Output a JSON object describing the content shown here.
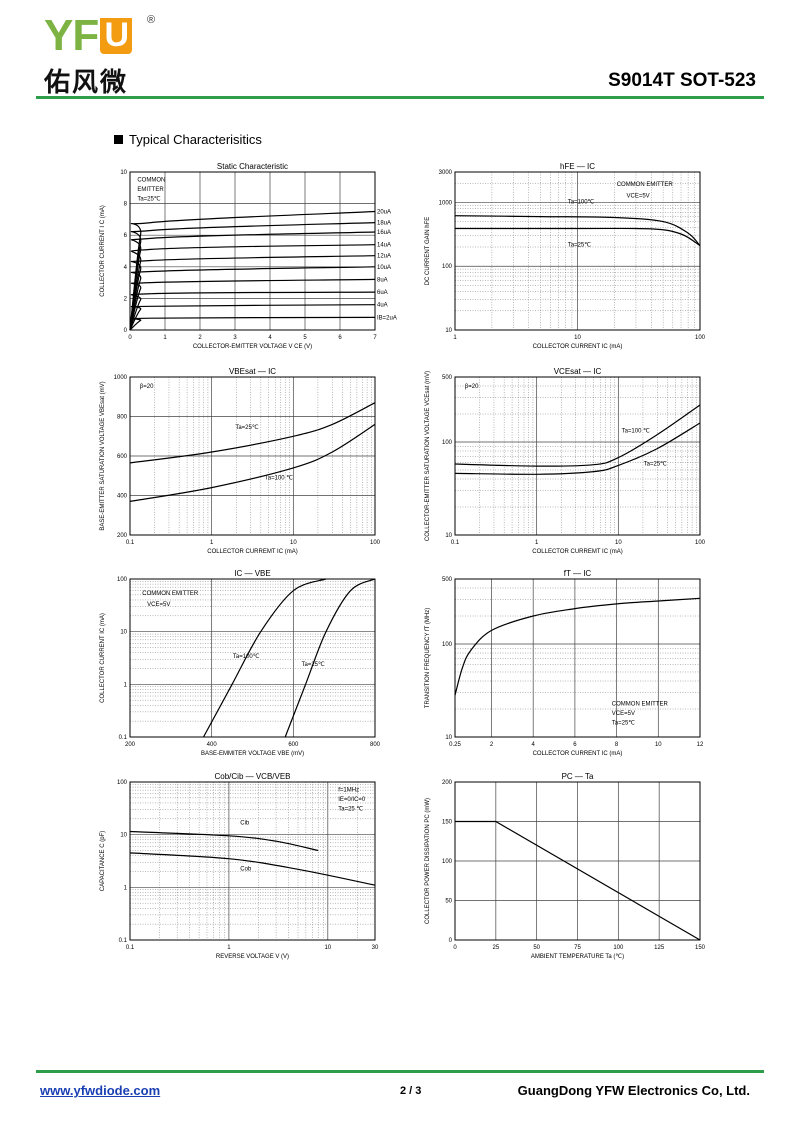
{
  "header": {
    "logo_text": "YFW",
    "logo_registered": "®",
    "logo_chinese": "佑风微",
    "part_number": "S9014T  SOT-523"
  },
  "section_title": "Typical  Characterisitics",
  "footer": {
    "url": "www.yfwdiode.com",
    "page": "2 / 3",
    "company": "GuangDong YFW Electronics Co, Ltd."
  },
  "chart_data": [
    {
      "id": "c1",
      "type": "line",
      "title": "Static Characteristic",
      "ylabel": "COLLECTOR CURRENT  I C  (mA)",
      "xlabel": "COLLECTOR-EMITTER VOLTAGE  V CE  (V)",
      "xscale": "linear",
      "yscale": "linear",
      "xlim": [
        0,
        7
      ],
      "ylim": [
        0,
        10
      ],
      "xticks": [
        0,
        1,
        2,
        3,
        4,
        5,
        6,
        7
      ],
      "yticks": [
        0,
        2,
        4,
        6,
        8,
        10
      ],
      "annotations": [
        "COMMON",
        "EMITTER",
        "Ta=25℃"
      ],
      "series": [
        {
          "name": "20uA",
          "values": [
            [
              0,
              0
            ],
            [
              0.3,
              6
            ],
            [
              0.6,
              6.8
            ],
            [
              7,
              7.5
            ]
          ]
        },
        {
          "name": "18uA",
          "values": [
            [
              0,
              0
            ],
            [
              0.3,
              5.5
            ],
            [
              0.6,
              6.3
            ],
            [
              7,
              6.8
            ]
          ]
        },
        {
          "name": "16uA",
          "values": [
            [
              0,
              0
            ],
            [
              0.3,
              5
            ],
            [
              0.6,
              5.8
            ],
            [
              7,
              6.2
            ]
          ]
        },
        {
          "name": "14uA",
          "values": [
            [
              0,
              0
            ],
            [
              0.3,
              4.3
            ],
            [
              0.6,
              5.1
            ],
            [
              7,
              5.4
            ]
          ]
        },
        {
          "name": "12uA",
          "values": [
            [
              0,
              0
            ],
            [
              0.3,
              3.8
            ],
            [
              0.6,
              4.4
            ],
            [
              7,
              4.7
            ]
          ]
        },
        {
          "name": "10uA",
          "values": [
            [
              0,
              0
            ],
            [
              0.3,
              3.2
            ],
            [
              0.6,
              3.7
            ],
            [
              7,
              4.0
            ]
          ]
        },
        {
          "name": "8uA",
          "values": [
            [
              0,
              0
            ],
            [
              0.3,
              2.6
            ],
            [
              0.6,
              3.0
            ],
            [
              7,
              3.2
            ]
          ]
        },
        {
          "name": "6uA",
          "values": [
            [
              0,
              0
            ],
            [
              0.3,
              1.9
            ],
            [
              0.6,
              2.3
            ],
            [
              7,
              2.4
            ]
          ]
        },
        {
          "name": "4uA",
          "values": [
            [
              0,
              0
            ],
            [
              0.3,
              1.3
            ],
            [
              0.6,
              1.5
            ],
            [
              7,
              1.6
            ]
          ]
        },
        {
          "name": "IB=2uA",
          "values": [
            [
              0,
              0
            ],
            [
              0.3,
              0.6
            ],
            [
              0.6,
              0.75
            ],
            [
              7,
              0.8
            ]
          ]
        }
      ]
    },
    {
      "id": "c2",
      "type": "line",
      "title": "hFE  —  IC",
      "ylabel": "DC CURRENT GAIN  hFE",
      "xlabel": "COLLECTOR CURRENT  IC  (mA)",
      "xscale": "log",
      "yscale": "log",
      "xlim": [
        1,
        100
      ],
      "ylim": [
        10,
        3000
      ],
      "xticks": [
        1,
        10,
        100
      ],
      "yticks": [
        10,
        100,
        1000,
        3000
      ],
      "annotations": [
        "COMMON EMITTER",
        "VCE=5V",
        "Ta=100℃",
        "Ta=25℃"
      ],
      "series": [
        {
          "name": "Ta=100℃",
          "values": [
            [
              1,
              620
            ],
            [
              5,
              600
            ],
            [
              20,
              580
            ],
            [
              50,
              500
            ],
            [
              80,
              330
            ],
            [
              100,
              210
            ]
          ]
        },
        {
          "name": "Ta=25℃",
          "values": [
            [
              1,
              390
            ],
            [
              10,
              390
            ],
            [
              40,
              385
            ],
            [
              70,
              320
            ],
            [
              100,
              210
            ]
          ]
        }
      ]
    },
    {
      "id": "c3",
      "type": "line",
      "title": "VBEsat  —  IC",
      "ylabel": "BASE-EMITTER SATURATION VOLTAGE  VBEsat  (mV)",
      "xlabel": "COLLECTOR CURREMT  IC  (mA)",
      "xscale": "log",
      "yscale": "linear",
      "xlim": [
        0.1,
        100
      ],
      "ylim": [
        200,
        1000
      ],
      "xticks": [
        0.1,
        1,
        10,
        100
      ],
      "yticks": [
        200,
        400,
        600,
        800,
        1000
      ],
      "annotations": [
        "β=20",
        "Ta=25℃",
        "Ta=100 ℃"
      ],
      "series": [
        {
          "name": "Ta=25℃",
          "values": [
            [
              0.1,
              565
            ],
            [
              1,
              620
            ],
            [
              10,
              700
            ],
            [
              30,
              760
            ],
            [
              100,
              870
            ]
          ]
        },
        {
          "name": "Ta=100℃",
          "values": [
            [
              0.1,
              370
            ],
            [
              1,
              440
            ],
            [
              10,
              540
            ],
            [
              30,
              620
            ],
            [
              100,
              760
            ]
          ]
        }
      ]
    },
    {
      "id": "c4",
      "type": "line",
      "title": "VCEsat  —  IC",
      "ylabel": "COLLECTOR-EMITTER SATURATION VOLTAGE  VCEsat  (mV)",
      "xlabel": "COLLECTOR CURREMT  IC  (mA)",
      "xscale": "log",
      "yscale": "log",
      "xlim": [
        0.1,
        100
      ],
      "ylim": [
        10,
        500
      ],
      "xticks": [
        0.1,
        1,
        10,
        100
      ],
      "yticks": [
        10,
        100,
        500
      ],
      "annotations": [
        "β=20",
        "Ta=100 ℃",
        "Ta=25℃"
      ],
      "series": [
        {
          "name": "Ta=100℃",
          "values": [
            [
              0.1,
              58
            ],
            [
              1,
              55
            ],
            [
              5,
              57
            ],
            [
              10,
              68
            ],
            [
              30,
              120
            ],
            [
              100,
              250
            ]
          ]
        },
        {
          "name": "Ta=25℃",
          "values": [
            [
              0.1,
              46
            ],
            [
              1,
              45
            ],
            [
              5,
              48
            ],
            [
              10,
              56
            ],
            [
              30,
              85
            ],
            [
              100,
              160
            ]
          ]
        }
      ]
    },
    {
      "id": "c5",
      "type": "line",
      "title": "IC  —  VBE",
      "ylabel": "COLLECTOR CURRENT  IC  (mA)",
      "xlabel": "BASE-EMMITER VOLTAGE  VBE  (mV)",
      "xscale": "linear",
      "yscale": "log",
      "xlim": [
        200,
        800
      ],
      "ylim": [
        0.1,
        100
      ],
      "xticks": [
        200,
        400,
        600,
        800
      ],
      "yticks": [
        0.1,
        1,
        10,
        100
      ],
      "annotations": [
        "COMMON EMITTER",
        "VCE=5V",
        "Ta=100℃",
        "Ta=25℃"
      ],
      "series": [
        {
          "name": "Ta=100℃",
          "values": [
            [
              380,
              0.1
            ],
            [
              450,
              1
            ],
            [
              520,
              10
            ],
            [
              600,
              60
            ],
            [
              680,
              100
            ]
          ]
        },
        {
          "name": "Ta=25℃",
          "values": [
            [
              580,
              0.1
            ],
            [
              630,
              1
            ],
            [
              680,
              10
            ],
            [
              740,
              60
            ],
            [
              800,
              100
            ]
          ]
        }
      ]
    },
    {
      "id": "c6",
      "type": "line",
      "title": "fT  —  IC",
      "ylabel": "TRANSITION FREQUENCY  fT  (MHz)",
      "xlabel": "COLLECTOR CURRENT  IC  (mA)",
      "xscale": "linear",
      "yscale": "log",
      "xlim": [
        0.25,
        12
      ],
      "ylim": [
        10,
        500
      ],
      "xticks": [
        0.25,
        2,
        4,
        6,
        8,
        10,
        12
      ],
      "yticks": [
        10,
        100,
        500
      ],
      "annotations": [
        "COMMON EMITTER",
        "VCE=5V",
        "Ta=25℃"
      ],
      "series": [
        {
          "name": "fT",
          "values": [
            [
              0.25,
              28
            ],
            [
              0.6,
              55
            ],
            [
              1,
              85
            ],
            [
              2,
              140
            ],
            [
              4,
              200
            ],
            [
              6,
              240
            ],
            [
              8,
              270
            ],
            [
              10,
              290
            ],
            [
              12,
              310
            ]
          ]
        }
      ]
    },
    {
      "id": "c7",
      "type": "line",
      "title": "Cob/Cib  —  VCB/VEB",
      "ylabel": "CAPACITANCE  C  (pF)",
      "xlabel": "REVERSE  VOLTAGE   V   (V)",
      "xscale": "log",
      "yscale": "log",
      "xlim": [
        0.1,
        30
      ],
      "ylim": [
        0.1,
        100
      ],
      "xticks": [
        0.1,
        1,
        10,
        30
      ],
      "yticks": [
        0.1,
        1,
        10,
        100
      ],
      "annotations": [
        "f=1MHz",
        "IE=0/IC=0",
        "Ta=25 ℃",
        "Cib",
        "Cob"
      ],
      "series": [
        {
          "name": "Cib",
          "values": [
            [
              0.1,
              11.5
            ],
            [
              1,
              9.5
            ],
            [
              3,
              7.5
            ],
            [
              8,
              5
            ]
          ]
        },
        {
          "name": "Cob",
          "values": [
            [
              0.1,
              4.5
            ],
            [
              1,
              3.5
            ],
            [
              5,
              2.2
            ],
            [
              30,
              1.1
            ]
          ]
        }
      ]
    },
    {
      "id": "c8",
      "type": "line",
      "title": "PC  —  Ta",
      "ylabel": "COLLECTOR POWER DISSIPATION  PC  (mW)",
      "xlabel": "AMBIENT TEMPERATURE  Ta  (℃)",
      "xscale": "linear",
      "yscale": "linear",
      "xlim": [
        0,
        150
      ],
      "ylim": [
        0,
        200
      ],
      "xticks": [
        0,
        25,
        50,
        75,
        100,
        125,
        150
      ],
      "yticks": [
        0,
        50,
        100,
        150,
        200
      ],
      "annotations": [],
      "series": [
        {
          "name": "PC",
          "values": [
            [
              0,
              150
            ],
            [
              25,
              150
            ],
            [
              150,
              0
            ]
          ]
        }
      ]
    }
  ]
}
